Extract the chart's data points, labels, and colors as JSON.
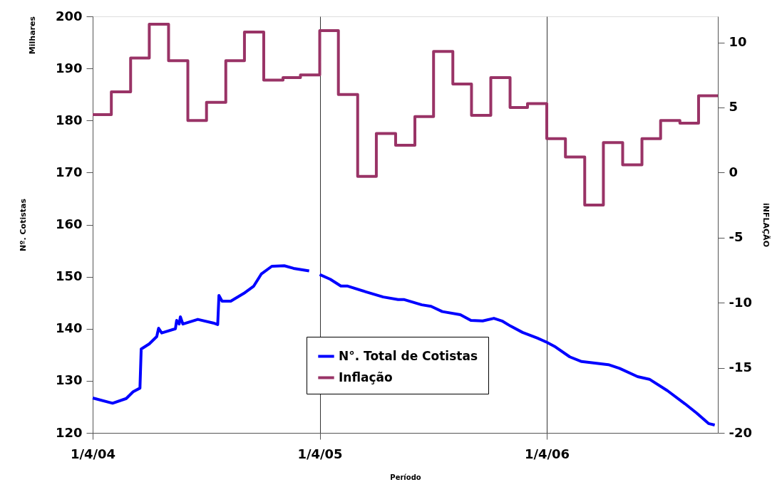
{
  "chart_data": {
    "type": "line",
    "xlabel": "Período",
    "ylabel": "Nº. Cotistas",
    "y2label": "iNFLAÇÃO",
    "annotations": [
      "Milhares"
    ],
    "xlim": [
      "2004-04-01",
      "2007-01-01"
    ],
    "xticks": [
      {
        "value": "2004-04-01",
        "label": "1/4/04"
      },
      {
        "value": "2005-04-01",
        "label": "1/4/05"
      },
      {
        "value": "2006-04-01",
        "label": "1/4/06"
      }
    ],
    "ylim": [
      120,
      200
    ],
    "yticks": [
      120,
      130,
      140,
      150,
      160,
      170,
      180,
      190,
      200
    ],
    "y2lim": [
      -20,
      12
    ],
    "y2ticks": [
      -20,
      -15,
      -10,
      -5,
      0,
      5,
      10
    ],
    "grid": "x",
    "legend": "bottom",
    "line_style": "solid",
    "series": [
      {
        "name": "N°. Total de Cotistas",
        "color": "#0000ff",
        "x": [
          "2004-04-01",
          "2004-05-03",
          "2004-05-25",
          "2004-06-05",
          "2004-06-16",
          "2004-06-18",
          "2004-07-01",
          "2004-07-13",
          "2004-07-16",
          "2004-07-21",
          "2004-08-12",
          "2004-08-14",
          "2004-08-18",
          "2004-08-20",
          "2004-08-24",
          "2004-09-17",
          "2004-10-12",
          "2004-10-19",
          "2004-10-21",
          "2004-10-26",
          "2004-11-09",
          "2004-11-30",
          "2004-12-16",
          "2004-12-28",
          "2005-01-14",
          "2005-02-03",
          "2005-02-18",
          "2005-03-15",
          "2005-03-24",
          "2005-04-01",
          "2005-04-18",
          "2005-05-05",
          "2005-05-16",
          "2005-06-14",
          "2005-07-12",
          "2005-08-05",
          "2005-08-15",
          "2005-09-12",
          "2005-09-27",
          "2005-10-15",
          "2005-11-13",
          "2005-11-30",
          "2005-12-19",
          "2006-01-06",
          "2006-01-19",
          "2006-02-02",
          "2006-02-21",
          "2006-03-17",
          "2006-04-01",
          "2006-04-15",
          "2006-05-08",
          "2006-05-27",
          "2006-07-09",
          "2006-07-27",
          "2006-08-25",
          "2006-09-13",
          "2006-10-12",
          "2006-11-09",
          "2006-11-28",
          "2006-12-17",
          "2006-12-27"
        ],
        "values": [
          126.7,
          125.7,
          126.6,
          127.9,
          128.6,
          136.1,
          137.1,
          138.5,
          140.1,
          139.2,
          140.0,
          141.6,
          140.9,
          142.3,
          140.9,
          141.8,
          141.1,
          140.8,
          146.4,
          145.3,
          145.3,
          146.8,
          148.2,
          150.5,
          152.0,
          152.1,
          151.6,
          151.1,
          null,
          150.4,
          149.5,
          148.2,
          148.2,
          147.1,
          146.1,
          145.6,
          145.6,
          144.6,
          144.3,
          143.3,
          142.7,
          141.6,
          141.5,
          142.0,
          141.5,
          140.5,
          139.3,
          138.2,
          137.4,
          136.5,
          134.6,
          133.7,
          133.1,
          132.4,
          130.8,
          130.3,
          128.1,
          125.6,
          123.8,
          121.8,
          121.5
        ]
      },
      {
        "name": "Inflação",
        "color": "#993366",
        "type": "step",
        "axis": "y2",
        "x": [
          "2004-04-01",
          "2004-05-01",
          "2004-06-01",
          "2004-07-01",
          "2004-08-01",
          "2004-09-01",
          "2004-10-01",
          "2004-11-01",
          "2004-12-01",
          "2005-01-01",
          "2005-02-01",
          "2005-03-01",
          "2005-04-01",
          "2005-05-01",
          "2005-06-01",
          "2005-07-01",
          "2005-08-01",
          "2005-09-01",
          "2005-10-01",
          "2005-11-01",
          "2005-12-01",
          "2006-01-01",
          "2006-02-01",
          "2006-03-01",
          "2006-04-01",
          "2006-05-01",
          "2006-06-01",
          "2006-07-01",
          "2006-08-01",
          "2006-09-01",
          "2006-10-01",
          "2006-11-01",
          "2006-12-01",
          "2007-01-01"
        ],
        "values": [
          4.45,
          6.2,
          8.8,
          11.4,
          8.6,
          4.0,
          5.4,
          8.6,
          10.8,
          7.1,
          7.3,
          7.5,
          10.9,
          6.0,
          -0.3,
          3.0,
          2.1,
          4.3,
          9.3,
          6.8,
          4.4,
          7.3,
          5.0,
          5.3,
          2.6,
          1.2,
          -2.5,
          2.3,
          0.6,
          2.6,
          4.0,
          3.8,
          5.9,
          5.9
        ]
      }
    ]
  }
}
